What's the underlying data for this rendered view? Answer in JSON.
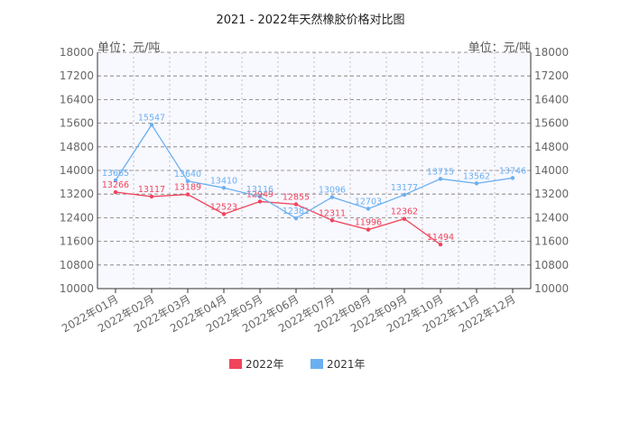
{
  "chart_data": {
    "type": "line",
    "title": "2021 - 2022年天然橡胶价格对比图",
    "unit_left": "单位：元/吨",
    "unit_right": "单位：元/吨",
    "categories": [
      "2022年01月",
      "2022年02月",
      "2022年03月",
      "2022年04月",
      "2022年05月",
      "2022年06月",
      "2022年07月",
      "2022年08月",
      "2022年09月",
      "2022年10月",
      "2022年11月",
      "2022年12月"
    ],
    "ylim": [
      10000,
      18000
    ],
    "yticks": [
      10000,
      10800,
      11600,
      12400,
      13200,
      14000,
      14800,
      15600,
      16400,
      17200,
      18000
    ],
    "grid": true,
    "legend_position": "bottom",
    "series": [
      {
        "name": "2022年",
        "color": "#f0445a",
        "values": [
          13266,
          13117,
          13189,
          12523,
          12949,
          12855,
          12311,
          11996,
          12362,
          11494,
          null,
          null
        ]
      },
      {
        "name": "2021年",
        "color": "#6ab0f0",
        "values": [
          13665,
          15547,
          13640,
          13410,
          13116,
          12381,
          13096,
          12703,
          13177,
          13715,
          13562,
          13746
        ]
      }
    ]
  }
}
